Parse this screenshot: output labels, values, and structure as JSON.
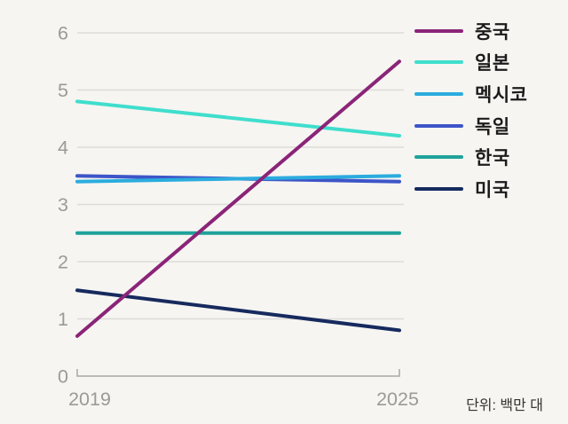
{
  "chart_data": {
    "type": "line",
    "title": "",
    "x": [
      2019,
      2025
    ],
    "xtick_labels": [
      "2019",
      "2025"
    ],
    "yticks": [
      0,
      1,
      2,
      3,
      4,
      5,
      6
    ],
    "ylim": [
      0,
      6
    ],
    "grid": true,
    "legend_position": "right",
    "series": [
      {
        "name": "중국",
        "color": "#8b2478",
        "values": [
          0.7,
          5.5
        ]
      },
      {
        "name": "일본",
        "color": "#3fdecc",
        "values": [
          4.8,
          4.2
        ]
      },
      {
        "name": "멕시코",
        "color": "#2bacde",
        "values": [
          3.4,
          3.5
        ]
      },
      {
        "name": "독일",
        "color": "#3d55c8",
        "values": [
          3.5,
          3.4
        ]
      },
      {
        "name": "한국",
        "color": "#1fa29a",
        "values": [
          2.5,
          2.5
        ]
      },
      {
        "name": "미국",
        "color": "#162a5e",
        "values": [
          1.5,
          0.8
        ]
      }
    ],
    "caption": "단위: 백만 대",
    "background_color": "#f6f5f2",
    "grid_color": "#dddcd8",
    "axis_color": "#a9a8a4",
    "tick_label_color": "#9b9a96",
    "legend_text_color": "#1b1b1b"
  }
}
